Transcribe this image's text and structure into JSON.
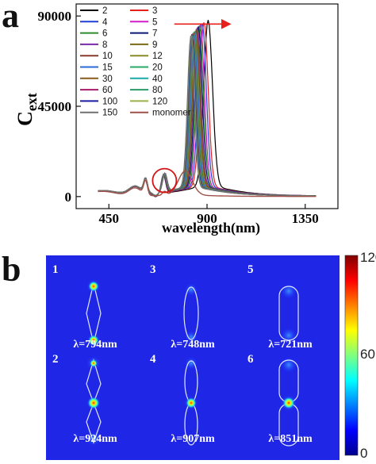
{
  "panel_a": {
    "letter": "a"
  },
  "panel_b": {
    "letter": "b"
  },
  "chart_data": [
    {
      "type": "line",
      "xlabel": "wavelength(nm)",
      "ylabel": "C",
      "ylabel_sub": "ext",
      "xlim": [
        300,
        1500
      ],
      "ylim": [
        -6000,
        96000
      ],
      "xticks": [
        450,
        900,
        1350
      ],
      "yticks": [
        0,
        45000,
        90000
      ],
      "xtick_labels": [
        "450",
        "900",
        "1350"
      ],
      "ytick_labels": [
        "0",
        "45000",
        "90000"
      ],
      "legend_placement": "top-left",
      "annotations": {
        "circle_at": [
          705,
          8000
        ],
        "arrow_from_x": 750,
        "arrow_to_x": 1000,
        "arrow_y": 86000
      },
      "series": [
        {
          "name": "2",
          "color": "#000000",
          "peak": [
            905,
            83000
          ]
        },
        {
          "name": "3",
          "color": "#e8201c",
          "peak": [
            886,
            82000
          ]
        },
        {
          "name": "4",
          "color": "#1f3fd6",
          "peak": [
            878,
            81500
          ]
        },
        {
          "name": "5",
          "color": "#d01fc8",
          "peak": [
            870,
            81000
          ]
        },
        {
          "name": "6",
          "color": "#2a8c2a",
          "peak": [
            865,
            80500
          ]
        },
        {
          "name": "7",
          "color": "#0b1a70",
          "peak": [
            860,
            80000
          ]
        },
        {
          "name": "8",
          "color": "#7a2aa8",
          "peak": [
            855,
            79500
          ]
        },
        {
          "name": "9",
          "color": "#7a6a14",
          "peak": [
            852,
            79000
          ]
        },
        {
          "name": "10",
          "color": "#8a3a2a",
          "peak": [
            849,
            78500
          ]
        },
        {
          "name": "12",
          "color": "#8a8a2a",
          "peak": [
            846,
            78000
          ]
        },
        {
          "name": "15",
          "color": "#2a6ad8",
          "peak": [
            843,
            77800
          ]
        },
        {
          "name": "20",
          "color": "#2aa86a",
          "peak": [
            840,
            77500
          ]
        },
        {
          "name": "30",
          "color": "#8a5a1a",
          "peak": [
            838,
            77200
          ]
        },
        {
          "name": "40",
          "color": "#1aa8a8",
          "peak": [
            836,
            77000
          ]
        },
        {
          "name": "60",
          "color": "#a81a6a",
          "peak": [
            834,
            76800
          ]
        },
        {
          "name": "80",
          "color": "#2a9a6a",
          "peak": [
            832,
            76500
          ]
        },
        {
          "name": "100",
          "color": "#1a1aa8",
          "peak": [
            830,
            76200
          ]
        },
        {
          "name": "120",
          "color": "#9ab04a",
          "peak": [
            828,
            76000
          ]
        },
        {
          "name": "150",
          "color": "#707070",
          "peak": [
            826,
            75800
          ]
        },
        {
          "name": "monomer",
          "color": "#a05048",
          "peak": [
            800,
            12000
          ]
        }
      ]
    },
    {
      "type": "heatmap",
      "colorbar": {
        "min": 0,
        "max": 120,
        "tick_labels": [
          "120",
          "60",
          "0"
        ]
      },
      "maps": [
        {
          "id": "1",
          "wavelength": "λ=794nm",
          "shape": "diamond"
        },
        {
          "id": "3",
          "wavelength": "λ=748nm",
          "shape": "ellipse"
        },
        {
          "id": "5",
          "wavelength": "λ=721nm",
          "shape": "rounded"
        },
        {
          "id": "2",
          "wavelength": "λ=924nm",
          "shape": "double-diamond"
        },
        {
          "id": "4",
          "wavelength": "λ=907nm",
          "shape": "double-ellipse"
        },
        {
          "id": "6",
          "wavelength": "λ=851nm",
          "shape": "double-rounded"
        }
      ]
    }
  ]
}
